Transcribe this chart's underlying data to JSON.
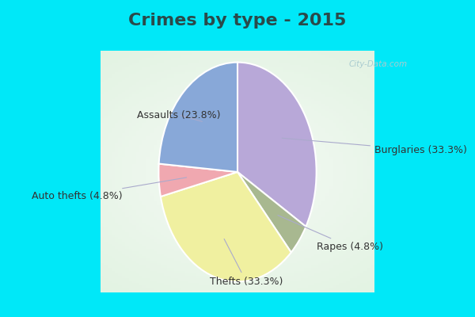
{
  "title": "Crimes by type - 2015",
  "labels": [
    "Burglaries",
    "Rapes",
    "Thefts",
    "Auto thefts",
    "Assaults"
  ],
  "values": [
    33.3,
    4.8,
    33.3,
    4.8,
    23.8
  ],
  "colors": [
    "#b8a8d8",
    "#a8b890",
    "#f0f0a0",
    "#f0a8b0",
    "#88a8d8"
  ],
  "label_texts": [
    "Burglaries (33.3%)",
    "Rapes (4.8%)",
    "Thefts (33.3%)",
    "Auto thefts (4.8%)",
    "Assaults (23.8%)"
  ],
  "title_fontsize": 16,
  "title_color": "#2a4a4a",
  "label_color": "#333333",
  "arrow_color": "#aaaacc",
  "label_fontsize": 9,
  "border_color": "#00e8f8",
  "watermark_text": "City-Data.com",
  "watermark_color": "#aaccd0",
  "label_positions": [
    [
      1.25,
      0.2,
      "left"
    ],
    [
      0.72,
      -0.68,
      "left"
    ],
    [
      0.08,
      -1.0,
      "center"
    ],
    [
      -1.05,
      -0.22,
      "right"
    ],
    [
      -0.92,
      0.52,
      "left"
    ]
  ],
  "edge_r": 0.62,
  "aspect_ratio": 0.72
}
